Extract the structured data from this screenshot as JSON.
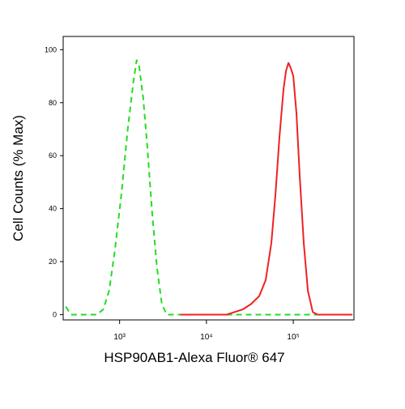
{
  "chart_data": {
    "type": "line",
    "xlabel": "HSP90AB1-Alexa Fluor® 647",
    "ylabel": "Cell Counts (% Max)",
    "xscale": "log",
    "xlim": [
      224,
      500000
    ],
    "ylim": [
      -2,
      105
    ],
    "xticks": [
      {
        "value": 1000,
        "label": "10³"
      },
      {
        "value": 10000,
        "label": "10⁴"
      },
      {
        "value": 100000,
        "label": "10⁵"
      }
    ],
    "yticks": [
      0,
      20,
      40,
      60,
      80,
      100
    ],
    "series": [
      {
        "color": "#22dd22",
        "dash": true,
        "x": [
          240,
          275,
          547,
          650,
          757,
          879,
          1045,
          1240,
          1442,
          1571,
          1676,
          1866,
          2078,
          2364,
          2690,
          3062,
          3484,
          10000,
          100000,
          480000
        ],
        "values": [
          3,
          0,
          0,
          2,
          9,
          24,
          45,
          70,
          88,
          96,
          94,
          82,
          64,
          39,
          18,
          4,
          0,
          0,
          0,
          0
        ]
      },
      {
        "color": "#ee2222",
        "dash": false,
        "x": [
          5000,
          17140,
          21230,
          26350,
          32670,
          40480,
          48100,
          55960,
          62230,
          69350,
          77240,
          82400,
          87900,
          93750,
          100000,
          108900,
          118800,
          132100,
          147200,
          167500,
          190600,
          480000
        ],
        "values": [
          0,
          0,
          1,
          2,
          4,
          7,
          13,
          27,
          45,
          67,
          85,
          92,
          95,
          93,
          90,
          76,
          52,
          27,
          9,
          1,
          0,
          0
        ]
      }
    ]
  }
}
